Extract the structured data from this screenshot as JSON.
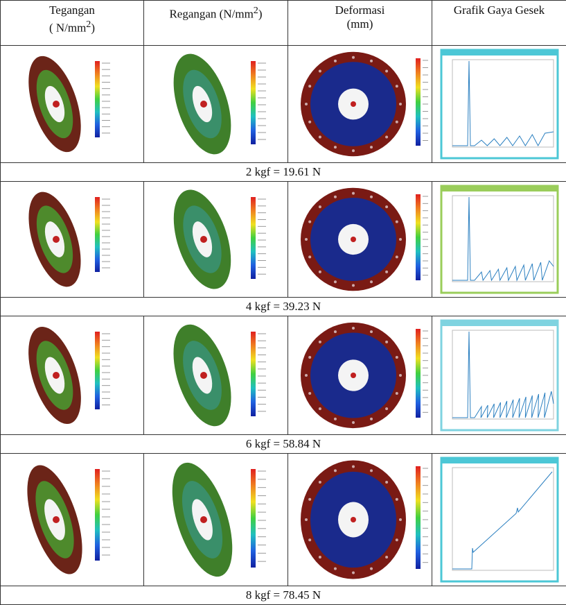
{
  "header": [
    {
      "title": "Tegangan",
      "unit": "( N/mm",
      "sup": "2",
      "unit_end": ")"
    },
    {
      "title": "Regangan (N/mm",
      "sup": "2",
      "unit_end": ")"
    },
    {
      "title": "Deformasi",
      "unit": "(mm)"
    },
    {
      "title": "Grafik Gaya Gesek"
    }
  ],
  "rows": [
    {
      "label": "2 kgf = 19.61 N"
    },
    {
      "label": "4 kgf = 39.23 N"
    },
    {
      "label": "6 kgf = 58.84 N"
    },
    {
      "label": "8 kgf = 78.45 N"
    }
  ]
}
